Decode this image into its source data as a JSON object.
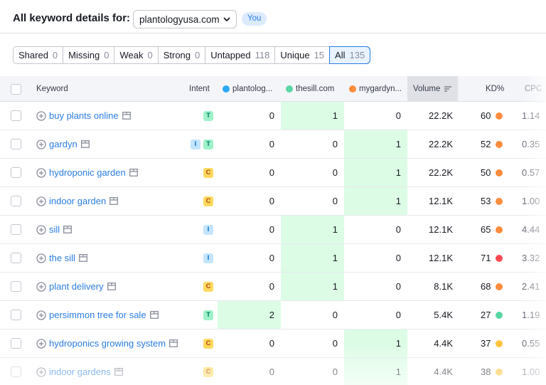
{
  "header": {
    "title": "All keyword details for:",
    "domain_selected": "plantologyusa.com",
    "you_badge": "You"
  },
  "filters": [
    {
      "label": "Shared",
      "count": "0",
      "active": false
    },
    {
      "label": "Missing",
      "count": "0",
      "active": false
    },
    {
      "label": "Weak",
      "count": "0",
      "active": false
    },
    {
      "label": "Strong",
      "count": "0",
      "active": false
    },
    {
      "label": "Untapped",
      "count": "118",
      "active": false
    },
    {
      "label": "Unique",
      "count": "15",
      "active": false
    },
    {
      "label": "All",
      "count": "135",
      "active": true
    }
  ],
  "table": {
    "columns": {
      "keyword": "Keyword",
      "intent": "Intent",
      "domain1": "plantolog...",
      "domain2": "thesill.com",
      "domain3": "mygardyn...",
      "volume": "Volume",
      "kd": "KD%",
      "cpc": "CPC"
    },
    "domain_colors": {
      "domain1": "#2ea8f8",
      "domain2": "#5ad6a4",
      "domain3": "#ff8c3d"
    },
    "kd_colors": {
      "orange": "#ff8c3d",
      "red": "#ff4953",
      "green": "#5ad6a4",
      "yellow": "#ffc43d"
    },
    "rows": [
      {
        "keyword": "buy plants online",
        "intents": [
          "T"
        ],
        "d1": "0",
        "d2": "1",
        "d3": "0",
        "best": 2,
        "volume": "22.2K",
        "kd": "60",
        "kd_color": "#ff8c3d",
        "cpc": "1.14"
      },
      {
        "keyword": "gardyn",
        "intents": [
          "I",
          "T"
        ],
        "d1": "0",
        "d2": "0",
        "d3": "1",
        "best": 3,
        "volume": "22.2K",
        "kd": "52",
        "kd_color": "#ff8c3d",
        "cpc": "0.35"
      },
      {
        "keyword": "hydroponic garden",
        "intents": [
          "C"
        ],
        "d1": "0",
        "d2": "0",
        "d3": "1",
        "best": 3,
        "volume": "22.2K",
        "kd": "50",
        "kd_color": "#ff8c3d",
        "cpc": "0.57"
      },
      {
        "keyword": "indoor garden",
        "intents": [
          "C"
        ],
        "d1": "0",
        "d2": "0",
        "d3": "1",
        "best": 3,
        "volume": "12.1K",
        "kd": "53",
        "kd_color": "#ff8c3d",
        "cpc": "1.00"
      },
      {
        "keyword": "sill",
        "intents": [
          "I"
        ],
        "d1": "0",
        "d2": "1",
        "d3": "0",
        "best": 2,
        "volume": "12.1K",
        "kd": "65",
        "kd_color": "#ff8c3d",
        "cpc": "4.44"
      },
      {
        "keyword": "the sill",
        "intents": [
          "I"
        ],
        "d1": "0",
        "d2": "1",
        "d3": "0",
        "best": 2,
        "volume": "12.1K",
        "kd": "71",
        "kd_color": "#ff4953",
        "cpc": "3.32"
      },
      {
        "keyword": "plant delivery",
        "intents": [
          "C"
        ],
        "d1": "0",
        "d2": "1",
        "d3": "0",
        "best": 2,
        "volume": "8.1K",
        "kd": "68",
        "kd_color": "#ff8c3d",
        "cpc": "2.41"
      },
      {
        "keyword": "persimmon tree for sale",
        "intents": [
          "T"
        ],
        "d1": "2",
        "d2": "0",
        "d3": "0",
        "best": 1,
        "volume": "5.4K",
        "kd": "27",
        "kd_color": "#5ad6a4",
        "cpc": "1.19"
      },
      {
        "keyword": "hydroponics growing system",
        "intents": [
          "C"
        ],
        "d1": "0",
        "d2": "0",
        "d3": "1",
        "best": 3,
        "volume": "4.4K",
        "kd": "37",
        "kd_color": "#ffc43d",
        "cpc": "0.55"
      },
      {
        "keyword": "indoor gardens",
        "intents": [
          "C"
        ],
        "d1": "0",
        "d2": "0",
        "d3": "1",
        "best": 3,
        "volume": "4.4K",
        "kd": "38",
        "kd_color": "#ffc43d",
        "cpc": "1.00"
      }
    ]
  }
}
